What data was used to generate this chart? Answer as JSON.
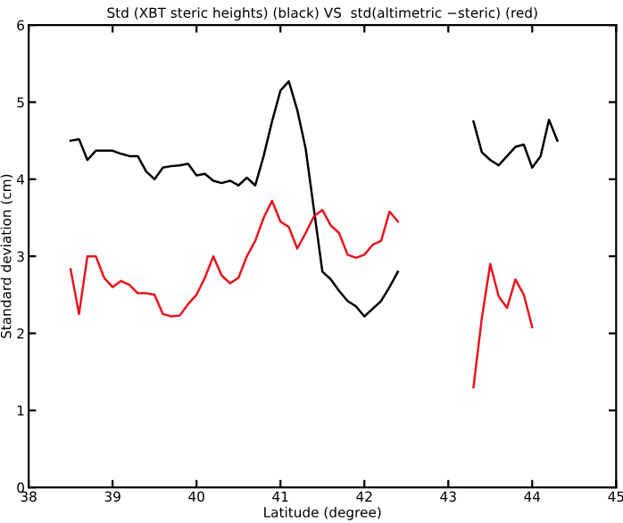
{
  "chart_data": {
    "type": "line",
    "title": "Std (XBT steric heights) (black) VS  std(altimetric −steric) (red)",
    "xlabel": "Latitude (degree)",
    "ylabel": "Standard deviation (cm)",
    "xlim": [
      38,
      45
    ],
    "xticks": [
      38,
      39,
      40,
      41,
      42,
      43,
      44,
      45
    ],
    "ylim": [
      0,
      6
    ],
    "yticks": [
      0,
      1,
      2,
      3,
      4,
      5,
      6
    ],
    "grid": false,
    "legend": false,
    "series": [
      {
        "color": "#000000",
        "x": [
          38.5,
          38.6,
          38.7,
          38.8,
          38.9,
          39.0,
          39.1,
          39.2,
          39.3,
          39.4,
          39.5,
          39.6,
          39.7,
          39.8,
          39.9,
          40.0,
          40.1,
          40.2,
          40.3,
          40.4,
          40.5,
          40.6,
          40.7,
          40.8,
          40.9,
          41.0,
          41.1,
          41.2,
          41.3,
          41.4,
          41.5,
          41.6,
          41.7,
          41.8,
          41.9,
          42.0,
          42.1,
          42.2,
          42.3,
          42.4,
          42.8,
          43.3,
          43.4,
          43.5,
          43.6,
          43.7,
          43.8,
          43.9,
          44.0,
          44.1,
          44.2,
          44.3
        ],
        "values": [
          4.5,
          4.52,
          4.25,
          4.37,
          4.37,
          4.37,
          4.33,
          4.3,
          4.3,
          4.1,
          4.0,
          4.15,
          4.17,
          4.18,
          4.2,
          4.05,
          4.07,
          3.98,
          3.95,
          3.98,
          3.92,
          4.02,
          3.92,
          4.3,
          4.75,
          5.15,
          5.27,
          4.9,
          4.4,
          3.6,
          2.8,
          2.7,
          2.55,
          2.42,
          2.35,
          2.22,
          2.32,
          2.42,
          2.6,
          2.8,
          null,
          4.75,
          4.35,
          4.25,
          4.18,
          4.3,
          4.42,
          4.45,
          4.15,
          4.3,
          4.77,
          4.5
        ]
      },
      {
        "color": "#e8141e",
        "x": [
          38.5,
          38.6,
          38.7,
          38.8,
          38.9,
          39.0,
          39.1,
          39.2,
          39.3,
          39.4,
          39.5,
          39.6,
          39.7,
          39.8,
          39.9,
          40.0,
          40.1,
          40.2,
          40.3,
          40.4,
          40.5,
          40.6,
          40.7,
          40.8,
          40.9,
          41.0,
          41.1,
          41.2,
          41.3,
          41.4,
          41.5,
          41.6,
          41.7,
          41.8,
          41.9,
          42.0,
          42.1,
          42.2,
          42.3,
          42.4,
          42.8,
          43.3,
          43.4,
          43.5,
          43.6,
          43.7,
          43.8,
          43.9,
          44.0
        ],
        "values": [
          2.83,
          2.25,
          3.0,
          3.0,
          2.72,
          2.6,
          2.68,
          2.63,
          2.52,
          2.52,
          2.5,
          2.25,
          2.22,
          2.23,
          2.38,
          2.5,
          2.72,
          3.0,
          2.75,
          2.65,
          2.72,
          3.0,
          3.2,
          3.5,
          3.72,
          3.45,
          3.38,
          3.1,
          3.3,
          3.52,
          3.6,
          3.4,
          3.3,
          3.02,
          2.98,
          3.02,
          3.15,
          3.2,
          3.58,
          3.45,
          null,
          1.3,
          2.2,
          2.9,
          2.48,
          2.33,
          2.7,
          2.5,
          2.08
        ]
      }
    ]
  }
}
